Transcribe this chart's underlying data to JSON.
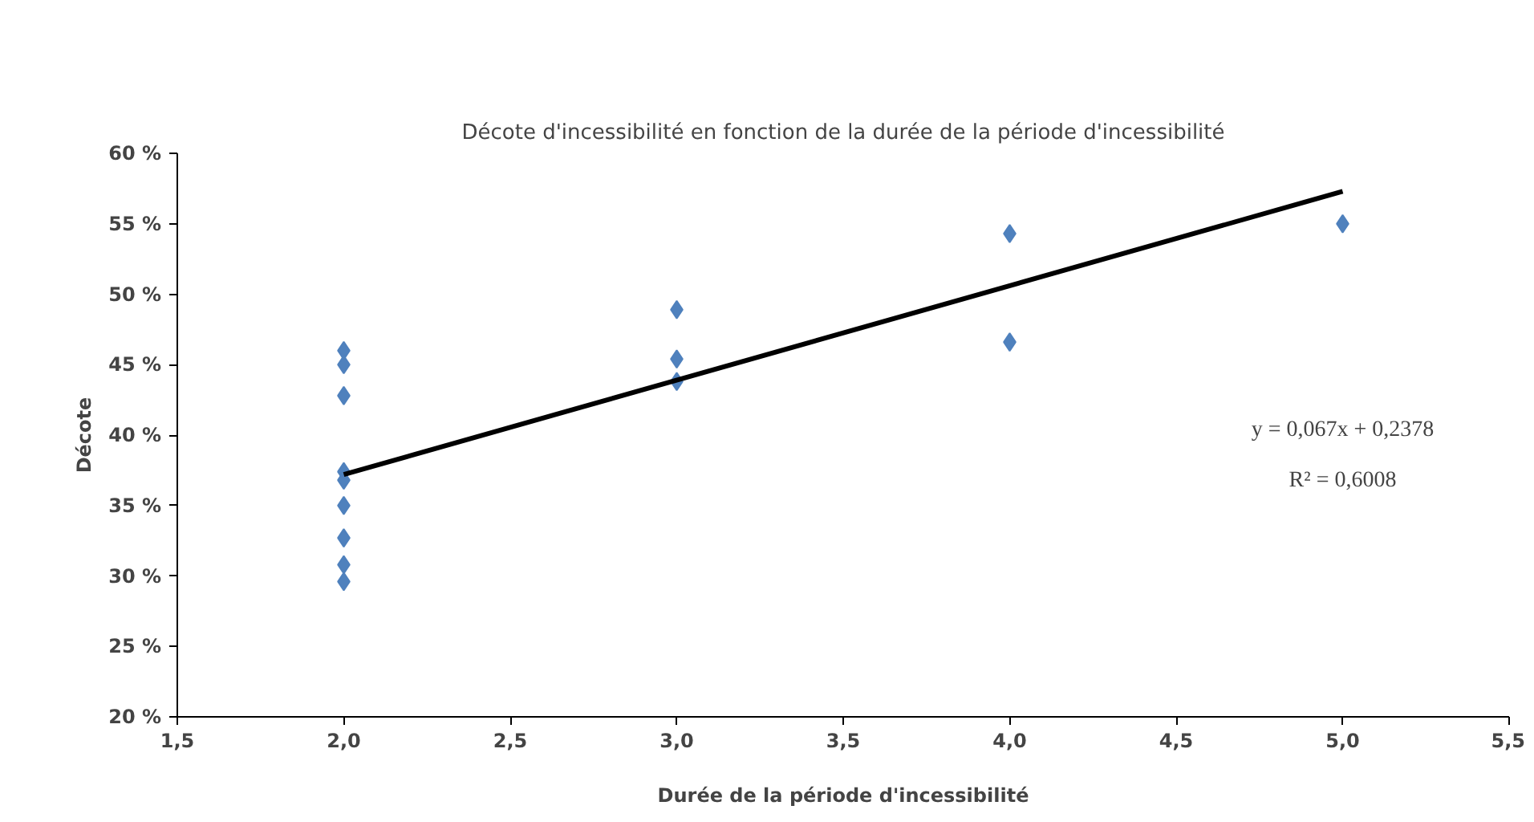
{
  "chart_data": {
    "type": "scatter",
    "title": "Décote d'incessibilité en fonction de la durée de la période d'incessibilité",
    "xlabel": "Durée de la période d'incessibilité",
    "ylabel": "Décote",
    "series": [
      {
        "color": "#4f81bd",
        "marker": "diamond",
        "x": [
          2,
          2,
          2,
          2,
          2,
          2,
          2,
          2,
          2,
          3,
          3,
          3,
          4,
          4,
          5
        ],
        "values": [
          46.0,
          45.0,
          42.8,
          37.4,
          36.8,
          35.0,
          32.7,
          30.8,
          29.6,
          48.9,
          45.4,
          43.8,
          54.3,
          46.6,
          55.0
        ]
      },
      {
        "type": "line",
        "color": "#000000",
        "line_style": "solid",
        "x": [
          2,
          5
        ],
        "values": [
          37.2,
          57.3
        ]
      }
    ],
    "xlim": [
      1.5,
      5.5
    ],
    "ylim": [
      20,
      60
    ],
    "xticks": [
      {
        "value": 1.5,
        "label": "1,5"
      },
      {
        "value": 2,
        "label": "2,0"
      },
      {
        "value": 2.5,
        "label": "2,5"
      },
      {
        "value": 3,
        "label": "3,0"
      },
      {
        "value": 3.5,
        "label": "3,5"
      },
      {
        "value": 4,
        "label": "4,0"
      },
      {
        "value": 4.5,
        "label": "4,5"
      },
      {
        "value": 5,
        "label": "5,0"
      },
      {
        "value": 5.5,
        "label": "5,5"
      }
    ],
    "yticks": [
      {
        "value": 20,
        "label": "20 %"
      },
      {
        "value": 25,
        "label": "25 %"
      },
      {
        "value": 30,
        "label": "30 %"
      },
      {
        "value": 35,
        "label": "35 %"
      },
      {
        "value": 40,
        "label": "40 %"
      },
      {
        "value": 45,
        "label": "45 %"
      },
      {
        "value": 50,
        "label": "50 %"
      },
      {
        "value": 55,
        "label": "55 %"
      },
      {
        "value": 60,
        "label": "60 %"
      }
    ],
    "grid": false,
    "annotations": [
      "y = 0,067x + 0,2378",
      "R² = 0,6008"
    ]
  }
}
